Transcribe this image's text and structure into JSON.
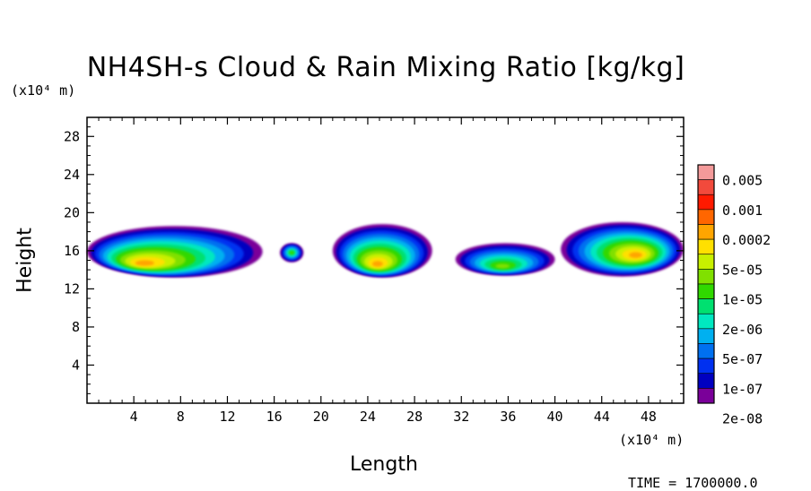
{
  "chart_data": {
    "type": "heatmap",
    "title": "NH4SH-s Cloud & Rain Mixing Ratio [kg/kg]",
    "xlabel": "Length",
    "ylabel": "Height",
    "x_units": "(x10⁴ m)",
    "y_units": "(x10⁴ m)",
    "xlim": [
      0,
      51
    ],
    "ylim": [
      0,
      30
    ],
    "x_ticks": [
      4,
      8,
      12,
      16,
      20,
      24,
      28,
      32,
      36,
      40,
      44,
      48
    ],
    "y_ticks": [
      4,
      8,
      12,
      16,
      20,
      24,
      28
    ],
    "colorbar": {
      "levels": [
        "0.005",
        "0.001",
        "0.0002",
        "5e-05",
        "1e-05",
        "2e-06",
        "5e-07",
        "1e-07",
        "2e-08"
      ],
      "colors": [
        "#f49a9a",
        "#f24a3c",
        "#ff1a00",
        "#ff6600",
        "#ffa500",
        "#ffe000",
        "#c8f000",
        "#80e000",
        "#30d800",
        "#00e070",
        "#00e8c0",
        "#00b0f0",
        "#0070f0",
        "#0030f0",
        "#0000c0",
        "#7a0099"
      ]
    },
    "blobs": [
      {
        "name": "cloud-cluster-1",
        "x_range": [
          0,
          15
        ],
        "z_range": [
          13.2,
          18.6
        ],
        "peak": "0.0002",
        "peak_x": 4.7,
        "peak_z": 14.6
      },
      {
        "name": "cloud-cluster-2",
        "x_range": [
          16.5,
          18.5
        ],
        "z_range": [
          14.8,
          16.8
        ],
        "peak": "1e-05",
        "peak_x": 17.5,
        "peak_z": 15.8
      },
      {
        "name": "cloud-cluster-3",
        "x_range": [
          21,
          29.5
        ],
        "z_range": [
          13.2,
          18.8
        ],
        "peak": "0.0002",
        "peak_x": 24.8,
        "peak_z": 14.5
      },
      {
        "name": "cloud-cluster-4",
        "x_range": [
          31.5,
          40
        ],
        "z_range": [
          13.4,
          16.8
        ],
        "peak": "5e-05",
        "peak_x": 35.5,
        "peak_z": 14.3
      },
      {
        "name": "cloud-cluster-5",
        "x_range": [
          40.5,
          51
        ],
        "z_range": [
          13.3,
          19
        ],
        "peak": "0.0002",
        "peak_x": 47,
        "peak_z": 15.5
      }
    ]
  },
  "time_label": "TIME =",
  "time_value": "1700000.0"
}
